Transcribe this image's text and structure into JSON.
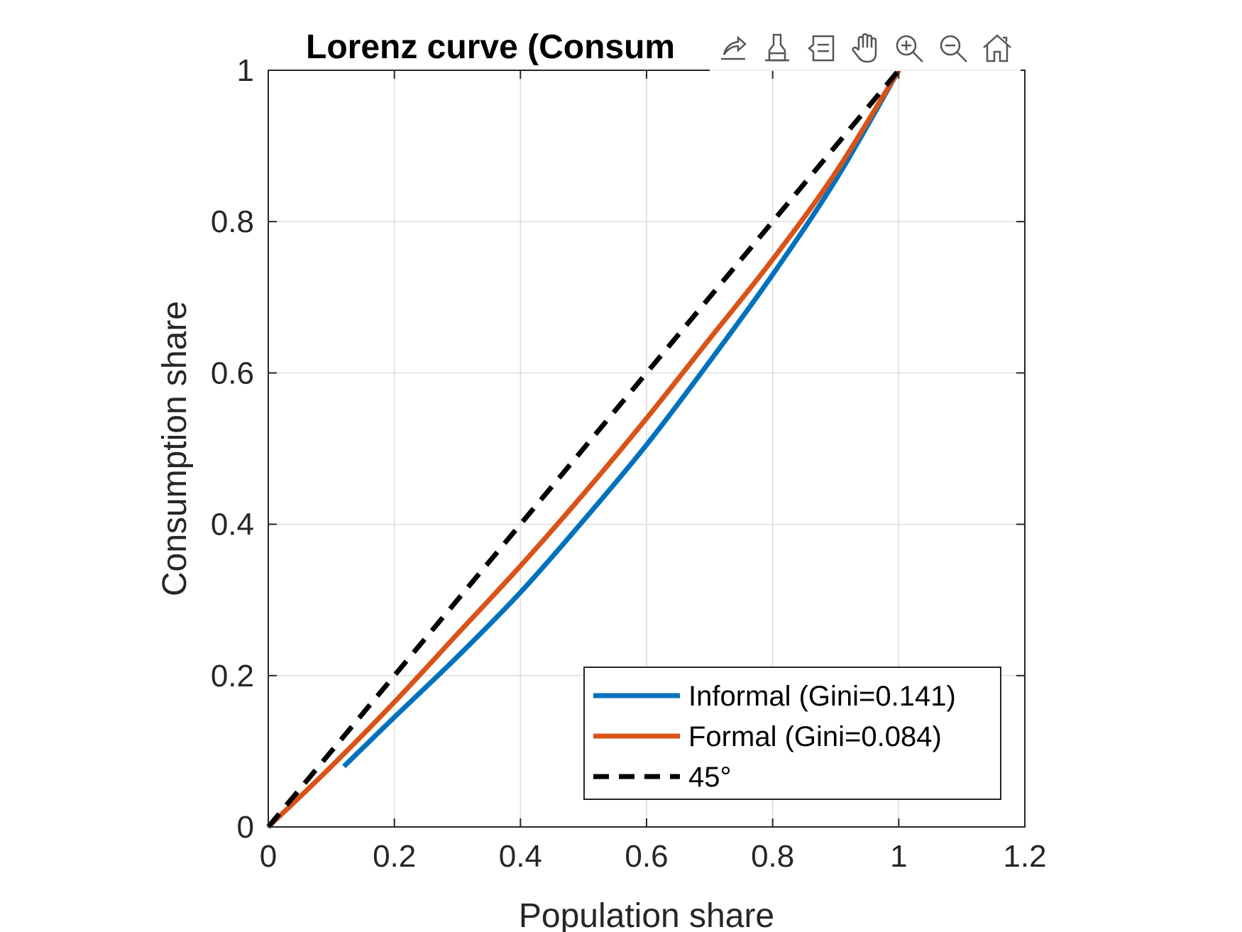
{
  "chart_data": {
    "type": "line",
    "title": "Lorenz curve (Consum",
    "xlabel": "Population share",
    "ylabel": "Consumption share",
    "xlim": [
      0,
      1.2
    ],
    "ylim": [
      0,
      1
    ],
    "xticks": [
      0,
      0.2,
      0.4,
      0.6,
      0.8,
      1,
      1.2
    ],
    "xtick_labels": [
      "0",
      "0.2",
      "0.4",
      "0.6",
      "0.8",
      "1",
      "1.2"
    ],
    "yticks": [
      0,
      0.2,
      0.4,
      0.6,
      0.8,
      1
    ],
    "ytick_labels": [
      "0",
      "0.2",
      "0.4",
      "0.6",
      "0.8",
      "1"
    ],
    "grid": true,
    "legend_position": "bottom-right",
    "series": [
      {
        "name": "Informal (Gini=0.141)",
        "color": "#0072BD",
        "style": "solid",
        "x": [
          0.12,
          0.2,
          0.3,
          0.4,
          0.5,
          0.6,
          0.7,
          0.8,
          0.9,
          1.0
        ],
        "y": [
          0.08,
          0.145,
          0.225,
          0.31,
          0.405,
          0.505,
          0.615,
          0.73,
          0.855,
          1.0
        ]
      },
      {
        "name": "Formal (Gini=0.084)",
        "color": "#D95319",
        "style": "solid",
        "x": [
          0,
          0.1,
          0.2,
          0.3,
          0.4,
          0.5,
          0.6,
          0.7,
          0.8,
          0.9,
          1.0
        ],
        "y": [
          0,
          0.08,
          0.165,
          0.255,
          0.345,
          0.44,
          0.54,
          0.645,
          0.75,
          0.865,
          1.0
        ]
      },
      {
        "name": "45°",
        "color": "#000000",
        "style": "dashed",
        "x": [
          0,
          1
        ],
        "y": [
          0,
          1
        ]
      }
    ]
  },
  "toolbar": {
    "icons": [
      "export-icon",
      "brush-icon",
      "datatip-icon",
      "pan-icon",
      "zoom-in-icon",
      "zoom-out-icon",
      "home-icon"
    ]
  }
}
